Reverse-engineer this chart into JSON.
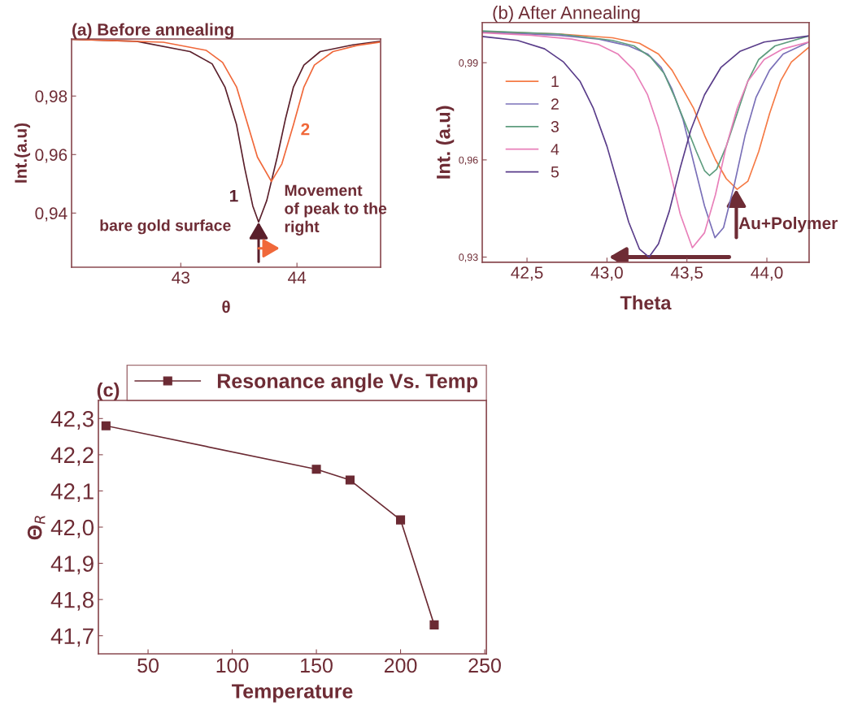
{
  "chart_data": [
    {
      "type": "line",
      "title": "(a) Before annealing",
      "xlabel": "θ",
      "ylabel": "Int.(a.u)",
      "legend": false,
      "xlim": [
        42.06,
        44.72
      ],
      "ylim": [
        0.9215,
        0.9995
      ],
      "xticks": [
        43,
        44
      ],
      "yticks": [
        {
          "value": 0.94,
          "label": "0,94"
        },
        {
          "value": 0.96,
          "label": "0,96"
        },
        {
          "value": 0.98,
          "label": "0,98"
        }
      ],
      "series": [
        {
          "name": "1",
          "color": "#5a1f2b",
          "x": [
            42.06,
            42.62,
            43.08,
            43.27,
            43.38,
            43.48,
            43.55,
            43.62,
            43.67,
            43.74,
            43.83,
            43.9,
            43.97,
            44.06,
            44.2,
            44.48,
            44.71
          ],
          "values": [
            0.9994,
            0.9987,
            0.9952,
            0.991,
            0.9831,
            0.9702,
            0.9554,
            0.9424,
            0.9369,
            0.9443,
            0.9591,
            0.972,
            0.9831,
            0.9906,
            0.9952,
            0.9975,
            0.9987
          ]
        },
        {
          "name": "2",
          "color": "#f0683a",
          "x": [
            42.06,
            42.85,
            43.22,
            43.36,
            43.48,
            43.57,
            43.66,
            43.78,
            43.87,
            43.97,
            44.06,
            44.15,
            44.31,
            44.52,
            44.71
          ],
          "values": [
            0.9994,
            0.9984,
            0.9956,
            0.9915,
            0.9831,
            0.9711,
            0.9591,
            0.9508,
            0.9568,
            0.9702,
            0.9831,
            0.9906,
            0.9952,
            0.9973,
            0.9984
          ]
        }
      ],
      "annotations": [
        "bare gold surface",
        "Movement\nof peak to the\nright"
      ]
    },
    {
      "type": "line",
      "title": "(b) After Annealing",
      "xlabel": "Theta",
      "ylabel": "Int. (a.u)",
      "legend": "left",
      "xlim": [
        42.22,
        44.264
      ],
      "ylim": [
        0.9284,
        1.0024
      ],
      "xticks": [
        {
          "value": 42.5,
          "label": "42,5"
        },
        {
          "value": 43.0,
          "label": "43,0"
        },
        {
          "value": 43.5,
          "label": "43,5"
        },
        {
          "value": 44.0,
          "label": "44,0"
        }
      ],
      "yticks": [
        {
          "value": 0.93,
          "label": "0,93"
        },
        {
          "value": 0.96,
          "label": "0,96"
        },
        {
          "value": 0.99,
          "label": "0,99"
        }
      ],
      "series": [
        {
          "name": "1",
          "color": "#f57a45",
          "x": [
            42.22,
            42.695,
            43.034,
            43.203,
            43.322,
            43.407,
            43.475,
            43.542,
            43.61,
            43.678,
            43.746,
            43.814,
            43.881,
            43.949,
            44.017,
            44.085,
            44.153,
            44.263
          ],
          "values": [
            0.9996,
            0.9989,
            0.9977,
            0.996,
            0.9927,
            0.9877,
            0.9818,
            0.9759,
            0.9676,
            0.9601,
            0.9542,
            0.9509,
            0.9534,
            0.9626,
            0.9743,
            0.9843,
            0.9902,
            0.9948
          ]
        },
        {
          "name": "2",
          "color": "#7a70b8",
          "x": [
            42.22,
            42.695,
            42.949,
            43.136,
            43.254,
            43.339,
            43.407,
            43.475,
            43.542,
            43.61,
            43.675,
            43.729,
            43.797,
            43.864,
            43.932,
            44.017,
            44.102,
            44.263
          ],
          "values": [
            0.9994,
            0.9985,
            0.9973,
            0.9952,
            0.9927,
            0.9885,
            0.9818,
            0.9726,
            0.9592,
            0.9458,
            0.936,
            0.9391,
            0.9525,
            0.9676,
            0.9793,
            0.9877,
            0.9927,
            0.9964
          ]
        },
        {
          "name": "3",
          "color": "#5e9c7e",
          "x": [
            42.22,
            42.695,
            43.034,
            43.169,
            43.271,
            43.356,
            43.424,
            43.492,
            43.559,
            43.61,
            43.641,
            43.686,
            43.746,
            43.814,
            43.881,
            43.949,
            44.051,
            44.263
          ],
          "values": [
            0.9998,
            0.9989,
            0.9969,
            0.9952,
            0.9918,
            0.9868,
            0.9793,
            0.9709,
            0.9626,
            0.9567,
            0.9552,
            0.9571,
            0.9642,
            0.9743,
            0.9843,
            0.991,
            0.9952,
            0.9983
          ]
        },
        {
          "name": "4",
          "color": "#e87fb9",
          "x": [
            42.22,
            42.525,
            42.78,
            42.949,
            43.068,
            43.169,
            43.254,
            43.322,
            43.39,
            43.458,
            43.534,
            43.61,
            43.678,
            43.746,
            43.814,
            43.881,
            43.983,
            44.102,
            44.263
          ],
          "values": [
            0.9992,
            0.9985,
            0.9973,
            0.9956,
            0.9927,
            0.9877,
            0.9801,
            0.9701,
            0.9575,
            0.9433,
            0.9329,
            0.9375,
            0.9492,
            0.9642,
            0.9759,
            0.9843,
            0.991,
            0.9943,
            0.9964
          ]
        },
        {
          "name": "5",
          "color": "#5a3d8a",
          "x": [
            42.22,
            42.441,
            42.61,
            42.729,
            42.831,
            42.915,
            43.0,
            43.068,
            43.136,
            43.203,
            43.263,
            43.322,
            43.39,
            43.458,
            43.525,
            43.61,
            43.712,
            43.831,
            43.983,
            44.263
          ],
          "values": [
            0.9981,
            0.9969,
            0.9943,
            0.9902,
            0.9843,
            0.9759,
            0.9642,
            0.9525,
            0.9408,
            0.9325,
            0.93,
            0.9341,
            0.9442,
            0.9575,
            0.9693,
            0.9801,
            0.9885,
            0.9935,
            0.9964,
            0.9983
          ]
        }
      ],
      "annotations": [
        "Au+Polymer"
      ]
    },
    {
      "type": "line",
      "title": "(c)",
      "xlabel": "Temperature",
      "ylabel": "Θ$_{R}$",
      "legend": "top",
      "marker": "square",
      "line_style": "solid",
      "xlim": [
        20.5,
        251
      ],
      "ylim": [
        41.65,
        42.35
      ],
      "xticks": [
        50,
        100,
        150,
        200,
        250
      ],
      "yticks": [
        {
          "value": 41.7,
          "label": "41,7"
        },
        {
          "value": 41.8,
          "label": "41,8"
        },
        {
          "value": 41.9,
          "label": "41,9"
        },
        {
          "value": 42.0,
          "label": "42,0"
        },
        {
          "value": 42.1,
          "label": "42,1"
        },
        {
          "value": 42.2,
          "label": "42,2"
        },
        {
          "value": 42.3,
          "label": "42,3"
        }
      ],
      "series": [
        {
          "name": "Resonance angle Vs. Temp",
          "color": "#6b2a33",
          "x": [
            25,
            150,
            170,
            200,
            220
          ],
          "values": [
            42.28,
            42.16,
            42.13,
            42.02,
            41.73
          ]
        }
      ]
    }
  ]
}
